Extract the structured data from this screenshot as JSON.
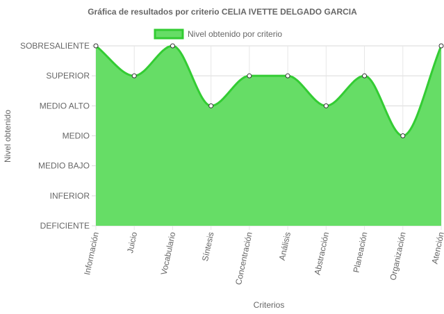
{
  "chart_data": {
    "type": "area",
    "title": "Gráfica de resultados por criterio CELIA IVETTE DELGADO GARCIA",
    "xlabel": "Criterios",
    "ylabel": "Nivel obtenido",
    "y_levels": [
      "DEFICIENTE",
      "INFERIOR",
      "MEDIO BAJO",
      "MEDIO",
      "MEDIO ALTO",
      "SUPERIOR",
      "SOBRESALIENTE"
    ],
    "ylim": [
      0,
      6
    ],
    "categories": [
      "Información",
      "Juicio",
      "Vocabulario",
      "Síntesis",
      "Concentración",
      "Análisis",
      "Abstracción",
      "Planeación",
      "Organización",
      "Atención"
    ],
    "series": [
      {
        "name": "Nivel obtenido por criterio",
        "values": [
          6,
          5,
          6,
          4,
          5,
          5,
          4,
          5,
          3,
          6
        ],
        "fill_color": "#66dd66",
        "line_color": "#33cc33"
      }
    ],
    "grid": true,
    "legend_position": "top"
  }
}
